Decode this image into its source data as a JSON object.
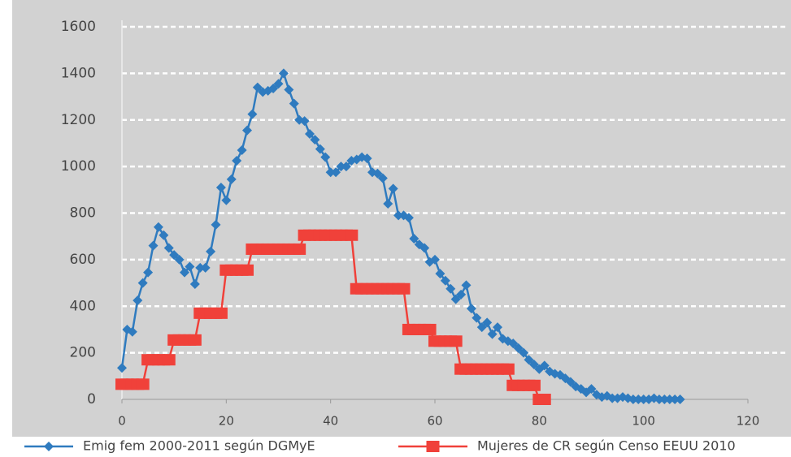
{
  "chart_data": {
    "type": "line",
    "x": [
      0,
      1,
      2,
      3,
      4,
      5,
      6,
      7,
      8,
      9,
      10,
      11,
      12,
      13,
      14,
      15,
      16,
      17,
      18,
      19,
      20,
      21,
      22,
      23,
      24,
      25,
      26,
      27,
      28,
      29,
      30,
      31,
      32,
      33,
      34,
      35,
      36,
      37,
      38,
      39,
      40,
      41,
      42,
      43,
      44,
      45,
      46,
      47,
      48,
      49,
      50,
      51,
      52,
      53,
      54,
      55,
      56,
      57,
      58,
      59,
      60,
      61,
      62,
      63,
      64,
      65,
      66,
      67,
      68,
      69,
      70,
      71,
      72,
      73,
      74,
      75,
      76,
      77,
      78,
      79,
      80,
      81,
      82,
      83,
      84,
      85,
      86,
      87,
      88,
      89,
      90,
      91,
      92,
      93,
      94,
      95,
      96,
      97,
      98,
      99,
      100,
      101,
      102,
      103,
      104,
      105,
      106,
      107
    ],
    "series": [
      {
        "name": "Emig fem 2000-2011 según DGMyE",
        "color": "#2f7bbf",
        "marker": "diamond",
        "values": [
          135,
          300,
          290,
          425,
          500,
          545,
          660,
          740,
          705,
          650,
          620,
          600,
          545,
          570,
          495,
          565,
          565,
          635,
          750,
          910,
          855,
          945,
          1025,
          1070,
          1155,
          1225,
          1340,
          1320,
          1325,
          1335,
          1355,
          1400,
          1330,
          1270,
          1200,
          1195,
          1140,
          1115,
          1075,
          1040,
          975,
          975,
          1000,
          1000,
          1025,
          1030,
          1040,
          1035,
          975,
          970,
          950,
          840,
          905,
          790,
          790,
          780,
          690,
          665,
          650,
          590,
          600,
          540,
          510,
          475,
          430,
          450,
          490,
          390,
          350,
          310,
          330,
          280,
          310,
          260,
          250,
          240,
          220,
          200,
          170,
          150,
          130,
          145,
          120,
          110,
          105,
          90,
          75,
          55,
          45,
          30,
          45,
          20,
          10,
          15,
          5,
          5,
          10,
          5,
          0,
          0,
          0,
          0,
          5,
          0,
          0,
          0,
          0,
          0
        ]
      },
      {
        "name": "Mujeres de CR según Censo EEUU 2010",
        "color": "#f0413a",
        "marker": "square",
        "values": [
          65,
          65,
          65,
          65,
          65,
          170,
          170,
          170,
          170,
          170,
          255,
          255,
          255,
          255,
          255,
          370,
          370,
          370,
          370,
          370,
          555,
          555,
          555,
          555,
          555,
          645,
          645,
          645,
          645,
          645,
          645,
          645,
          645,
          645,
          645,
          705,
          705,
          705,
          705,
          705,
          705,
          705,
          705,
          705,
          705,
          475,
          475,
          475,
          475,
          475,
          475,
          475,
          475,
          475,
          475,
          300,
          300,
          300,
          300,
          300,
          250,
          250,
          250,
          250,
          250,
          130,
          130,
          130,
          130,
          130,
          130,
          130,
          130,
          130,
          130,
          60,
          60,
          60,
          60,
          60,
          0,
          0,
          null,
          null,
          null,
          null,
          null,
          null,
          null,
          null,
          null,
          null,
          null,
          null,
          null,
          null,
          null,
          null,
          null,
          null,
          null,
          null,
          null,
          null,
          null,
          null,
          null,
          null
        ]
      }
    ],
    "xlim": [
      0,
      120
    ],
    "xticks": [
      0,
      20,
      40,
      60,
      80,
      100,
      120
    ],
    "ylim": [
      0,
      1600
    ],
    "yticks": [
      0,
      200,
      400,
      600,
      800,
      1000,
      1200,
      1400,
      1600
    ],
    "grid": true,
    "legend": "bottom"
  }
}
